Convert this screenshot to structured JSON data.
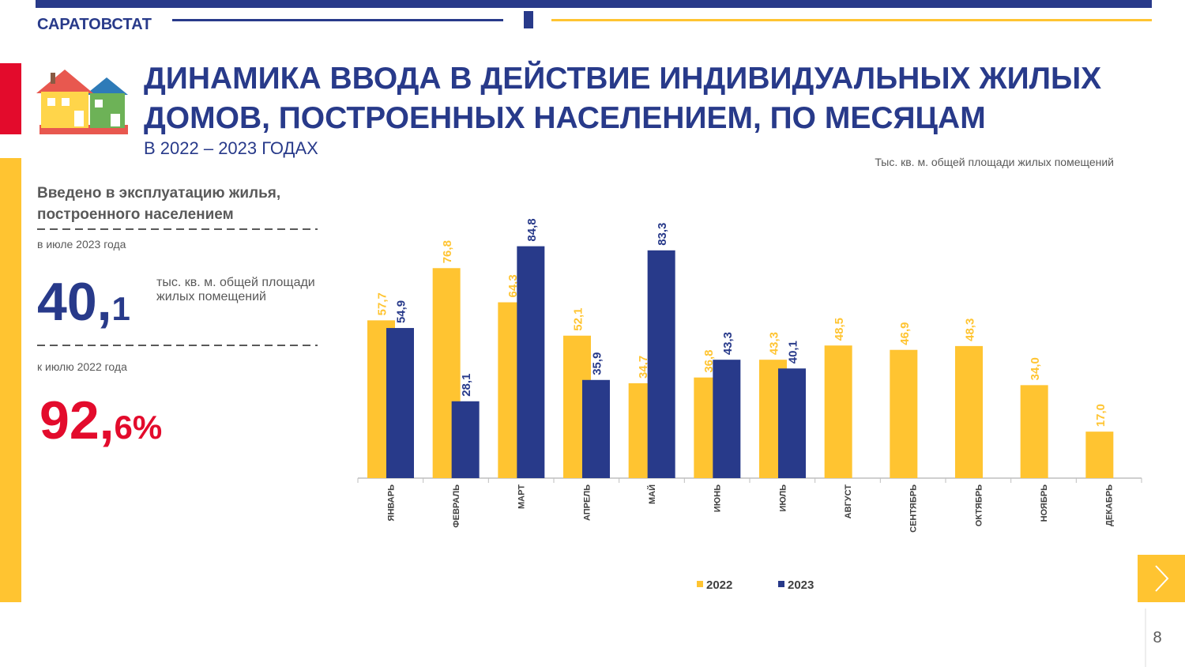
{
  "header": {
    "agency": "САРАТОВСТАТ",
    "title_lines": [
      "ДИНАМИКА ВВОДА В ДЕЙСТВИЕ ИНДИВИДУАЛЬНЫХ ЖИЛЫХ",
      "ДОМОВ, ПОСТРОЕННЫХ НАСЕЛЕНИЕМ, ПО МЕСЯЦАМ"
    ],
    "subtitle": "В 2022 – 2023 ГОДАХ"
  },
  "sidebar": {
    "heading_lines": [
      "Введено в эксплуатацию жилья,",
      "построенного населением"
    ],
    "period": "в июле 2023 года",
    "value": {
      "integer": "40,",
      "fraction": "1"
    },
    "unit_lines": [
      "тыс. кв. м. общей площади",
      "жилых помещений"
    ],
    "comparison_period": "к июлю 2022 года",
    "percent": {
      "integer": "92,",
      "fraction": "6%"
    }
  },
  "chart_data": {
    "type": "bar",
    "unit_note": "Тыс. кв. м. общей площади жилых помещений",
    "categories": [
      "ЯНВАРЬ",
      "ФЕВРАЛЬ",
      "МАРТ",
      "АПРЕЛЬ",
      "МАЙ",
      "ИЮНЬ",
      "ИЮЛЬ",
      "АВГУСТ",
      "СЕНТЯБРЬ",
      "ОКТЯБРЬ",
      "НОЯБРЬ",
      "ДЕКАБРЬ"
    ],
    "series": [
      {
        "name": "2022",
        "color": "#FFC431",
        "values": [
          57.7,
          76.8,
          64.3,
          52.1,
          34.7,
          36.8,
          43.3,
          48.5,
          46.9,
          48.3,
          34.0,
          17.0
        ],
        "value_labels": [
          "57,7",
          "76,8",
          "64,3",
          "52,1",
          "34,7",
          "36,8",
          "43,3",
          "48,5",
          "46,9",
          "48,3",
          "34,0",
          "17,0"
        ]
      },
      {
        "name": "2023",
        "color": "#283A8A",
        "values": [
          54.9,
          28.1,
          84.8,
          35.9,
          83.3,
          43.3,
          40.1,
          null,
          null,
          null,
          null,
          null
        ],
        "value_labels": [
          "54,9",
          "28,1",
          "84,8",
          "35,9",
          "83,3",
          "43,3",
          "40,1",
          null,
          null,
          null,
          null,
          null
        ]
      }
    ],
    "ylim": [
      0,
      100
    ],
    "grid": false,
    "legend": "bottom"
  },
  "page_number": "8"
}
